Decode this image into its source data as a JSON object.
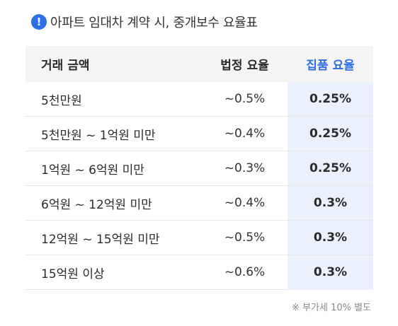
{
  "title": {
    "icon": "exclamation-circle-icon",
    "icon_glyph": "!",
    "text": "아파트 임대차 계약 시, 중개보수 요율표",
    "accent_color": "#2f6fe4"
  },
  "table": {
    "headers": {
      "amount": "거래 금액",
      "legal_rate": "법정 요율",
      "jippum_rate": "집품 요율"
    },
    "rows": [
      {
        "amount": "5천만원",
        "legal_rate": "~0.5%",
        "jippum_rate": "0.25%"
      },
      {
        "amount": "5천만원 ~ 1억원 미만",
        "legal_rate": "~0.4%",
        "jippum_rate": "0.25%"
      },
      {
        "amount": "1억원 ~ 6억원 미만",
        "legal_rate": "~0.3%",
        "jippum_rate": "0.25%"
      },
      {
        "amount": "6억원 ~ 12억원 미만",
        "legal_rate": "~0.4%",
        "jippum_rate": "0.3%"
      },
      {
        "amount": "12억원 ~ 15억원 미만",
        "legal_rate": "~0.5%",
        "jippum_rate": "0.3%"
      },
      {
        "amount": "15억원 이상",
        "legal_rate": "~0.6%",
        "jippum_rate": "0.3%"
      }
    ],
    "highlight_color": "#eaf0fc"
  },
  "footnote": "※ 부가세 10% 별도"
}
